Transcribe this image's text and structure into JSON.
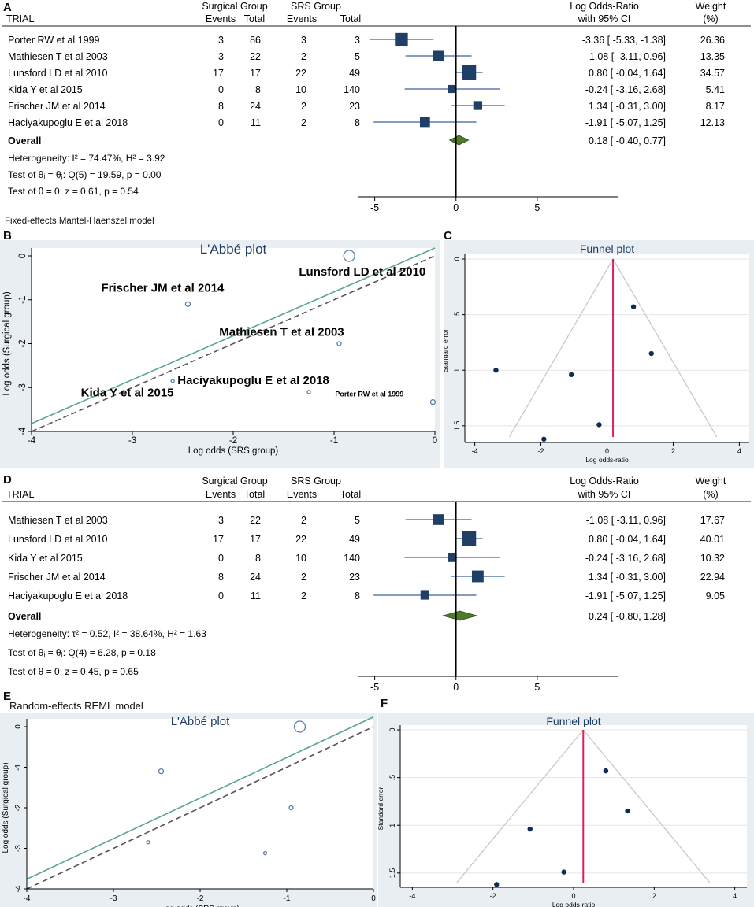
{
  "colors": {
    "marker": "#1f3f66",
    "ci_line": "#5a7fa8",
    "diamond": "#4f7a2a",
    "diamond_edge": "#2d4d12",
    "fit_line": "#5aa592",
    "diag_line": "#555555",
    "funnel_line": "#c8c8c8",
    "null_line": "#e0205a",
    "plot_bg": "#e8eef2",
    "title_blue": "#1f3f66"
  },
  "panel_letters": {
    "a": "A",
    "b": "B",
    "c": "C",
    "d": "D",
    "e": "E",
    "f": "F"
  },
  "chart_data": [
    {
      "id": "A",
      "type": "forest",
      "headers": {
        "trial": "TRIAL",
        "surgical_group": "Surgical Group",
        "srs_group": "SRS Group",
        "events": "Events",
        "total": "Total",
        "lor_top": "Log Odds-Ratio",
        "lor_bottom": "with 95% CI",
        "weight_top": "Weight",
        "weight_bottom": "(%)"
      },
      "studies": [
        {
          "name": "Porter RW et al 1999",
          "s_events": "3",
          "s_total": "86",
          "r_events": "3",
          "r_total": "3",
          "lor": -3.36,
          "lo": -5.33,
          "hi": -1.38,
          "ci_text": "-3.36 [  -5.33,  -1.38]",
          "weight": 26.36,
          "weight_text": "26.36"
        },
        {
          "name": "Mathiesen T et al 2003",
          "s_events": "3",
          "s_total": "22",
          "r_events": "2",
          "r_total": "5",
          "lor": -1.08,
          "lo": -3.11,
          "hi": 0.96,
          "ci_text": "-1.08 [  -3.11,   0.96]",
          "weight": 13.35,
          "weight_text": "13.35"
        },
        {
          "name": "Lunsford LD et al 2010",
          "s_events": "17",
          "s_total": "17",
          "r_events": "22",
          "r_total": "49",
          "lor": 0.8,
          "lo": -0.04,
          "hi": 1.64,
          "ci_text": "0.80 [  -0.04,   1.64]",
          "weight": 34.57,
          "weight_text": "34.57"
        },
        {
          "name": "Kida Y et al  2015",
          "s_events": "0",
          "s_total": "8",
          "r_events": "10",
          "r_total": "140",
          "lor": -0.24,
          "lo": -3.16,
          "hi": 2.68,
          "ci_text": "-0.24 [  -3.16,   2.68]",
          "weight": 5.41,
          "weight_text": "5.41"
        },
        {
          "name": "Frischer JM et al 2014",
          "s_events": "8",
          "s_total": "24",
          "r_events": "2",
          "r_total": "23",
          "lor": 1.34,
          "lo": -0.31,
          "hi": 3.0,
          "ci_text": "1.34 [  -0.31,   3.00]",
          "weight": 8.17,
          "weight_text": "8.17"
        },
        {
          "name": "Haciyakupoglu E et al 2018",
          "s_events": "0",
          "s_total": "11",
          "r_events": "2",
          "r_total": "8",
          "lor": -1.91,
          "lo": -5.07,
          "hi": 1.25,
          "ci_text": "-1.91 [  -5.07,   1.25]",
          "weight": 12.13,
          "weight_text": "12.13"
        }
      ],
      "overall": {
        "label": "Overall",
        "lor": 0.18,
        "lo": -0.4,
        "hi": 0.77,
        "ci_text": "0.18 [  -0.40,   0.77]"
      },
      "stats": [
        "Heterogeneity: I² = 74.47%, H² = 3.92",
        "Test of θᵢ = θⱼ: Q(5) = 19.59, p = 0.00",
        "Test of θ = 0: z = 0.61, p = 0.54"
      ],
      "xlim": [
        -6,
        10
      ],
      "xticks": [
        -5,
        0,
        5
      ],
      "xtick_labels": [
        "-5",
        "0",
        "5"
      ],
      "model_caption": "Fixed-effects Mantel-Haenszel model"
    },
    {
      "id": "B",
      "type": "scatter",
      "title": "L'Abbé plot",
      "xlabel": "Log odds (SRS group)",
      "ylabel": "Log odds (Surgical group)",
      "xlim": [
        -4,
        0
      ],
      "ylim": [
        -4,
        0
      ],
      "xticks": [
        -4,
        -3,
        -2,
        -1,
        0
      ],
      "xtick_labels": [
        "-4",
        "-3",
        "-2",
        "-1",
        "0"
      ],
      "yticks": [
        0,
        -1,
        -2,
        -3,
        -4
      ],
      "ytick_labels": [
        "0",
        "-1",
        "-2",
        "-3",
        "-4"
      ],
      "points": [
        {
          "x": -0.02,
          "y": -3.33,
          "size": 3
        },
        {
          "x": -0.95,
          "y": -2.0,
          "size": 2.5
        },
        {
          "x": -0.85,
          "y": 0.0,
          "size": 7
        },
        {
          "x": -2.6,
          "y": -2.85,
          "size": 2
        },
        {
          "x": -2.45,
          "y": -1.1,
          "size": 3
        },
        {
          "x": -1.25,
          "y": -3.1,
          "size": 2
        }
      ],
      "fit_line": [
        [
          -4,
          -3.82
        ],
        [
          0,
          0.18
        ]
      ],
      "reference_line": [
        [
          -4,
          -4
        ],
        [
          0,
          0
        ]
      ],
      "annotations": [
        {
          "text": "Lunsford LD et al 2010",
          "x": -0.72,
          "y": -0.45,
          "size": "large"
        },
        {
          "text": "Frischer JM et al 2014",
          "x": -2.7,
          "y": -0.82,
          "size": "large"
        },
        {
          "text": "Mathiesen T et al 2003",
          "x": -1.52,
          "y": -1.82,
          "size": "large"
        },
        {
          "text": "Haciyakupoglu E et al 2018",
          "x": -1.8,
          "y": -2.92,
          "size": "large"
        },
        {
          "text": "Kida Y et al 2015",
          "x": -3.05,
          "y": -3.2,
          "size": "large"
        },
        {
          "text": "Porter RW et al 1999",
          "x": -0.65,
          "y": -3.2,
          "size": "small"
        }
      ]
    },
    {
      "id": "C",
      "type": "scatter",
      "title": "Funnel plot",
      "xlabel": "Log odds-ratio",
      "ylabel": "Standard error",
      "xlim": [
        -4.3,
        4.3
      ],
      "ylim": [
        0,
        1.65
      ],
      "xticks": [
        -4,
        -2,
        0,
        2,
        4
      ],
      "xtick_labels": [
        "-4",
        "-2",
        "0",
        "2",
        "4"
      ],
      "yticks": [
        0,
        0.5,
        1,
        1.5
      ],
      "ytick_labels": [
        "0",
        ".5",
        "1",
        "1.5"
      ],
      "points": [
        {
          "x": 0.8,
          "y": 0.43
        },
        {
          "x": 1.34,
          "y": 0.85
        },
        {
          "x": -1.08,
          "y": 1.04
        },
        {
          "x": -3.36,
          "y": 1.0
        },
        {
          "x": -0.24,
          "y": 1.49
        },
        {
          "x": -1.91,
          "y": 1.62
        }
      ],
      "center": 0.18,
      "funnel_se_max": 1.6
    },
    {
      "id": "D",
      "type": "forest",
      "headers": {
        "trial": "TRIAL",
        "surgical_group": "Surgical Group",
        "srs_group": "SRS Group",
        "events": "Events",
        "total": "Total",
        "lor_top": "Log Odds-Ratio",
        "lor_bottom": "with 95% CI",
        "weight_top": "Weight",
        "weight_bottom": "(%)"
      },
      "studies": [
        {
          "name": "Mathiesen T et al 2003",
          "s_events": "3",
          "s_total": "22",
          "r_events": "2",
          "r_total": "5",
          "lor": -1.08,
          "lo": -3.11,
          "hi": 0.96,
          "ci_text": "-1.08 [  -3.11,   0.96]",
          "weight": 17.67,
          "weight_text": "17.67"
        },
        {
          "name": "Lunsford LD et al 2010",
          "s_events": "17",
          "s_total": "17",
          "r_events": "22",
          "r_total": "49",
          "lor": 0.8,
          "lo": -0.04,
          "hi": 1.64,
          "ci_text": "0.80 [  -0.04,   1.64]",
          "weight": 40.01,
          "weight_text": "40.01"
        },
        {
          "name": "Kida Y et al  2015",
          "s_events": "0",
          "s_total": "8",
          "r_events": "10",
          "r_total": "140",
          "lor": -0.24,
          "lo": -3.16,
          "hi": 2.68,
          "ci_text": "-0.24 [  -3.16,   2.68]",
          "weight": 10.32,
          "weight_text": "10.32"
        },
        {
          "name": "Frischer JM et al 2014",
          "s_events": "8",
          "s_total": "24",
          "r_events": "2",
          "r_total": "23",
          "lor": 1.34,
          "lo": -0.31,
          "hi": 3.0,
          "ci_text": "1.34 [  -0.31,   3.00]",
          "weight": 22.94,
          "weight_text": "22.94"
        },
        {
          "name": "Haciyakupoglu E et al 2018",
          "s_events": "0",
          "s_total": "11",
          "r_events": "2",
          "r_total": "8",
          "lor": -1.91,
          "lo": -5.07,
          "hi": 1.25,
          "ci_text": "-1.91 [  -5.07,   1.25]",
          "weight": 9.05,
          "weight_text": "9.05"
        }
      ],
      "overall": {
        "label": "Overall",
        "lor": 0.24,
        "lo": -0.8,
        "hi": 1.28,
        "ci_text": "0.24 [  -0.80,   1.28]"
      },
      "stats": [
        "Heterogeneity: τ² = 0.52, I² = 38.64%, H² = 1.63",
        "Test of θᵢ = θⱼ: Q(4) = 6.28, p = 0.18",
        "Test of θ = 0: z = 0.45, p = 0.65"
      ],
      "xlim": [
        -6,
        10
      ],
      "xticks": [
        -5,
        0,
        5
      ],
      "xtick_labels": [
        "-5",
        "0",
        "5"
      ],
      "model_caption": "Random-effects REML model"
    },
    {
      "id": "E",
      "type": "scatter",
      "title": "L'Abbé plot",
      "xlabel": "Log odds (SRS group)",
      "ylabel": "Log odds (Surgical group)",
      "xlim": [
        -4,
        0
      ],
      "ylim": [
        -4,
        0
      ],
      "xticks": [
        -4,
        -3,
        -2,
        -1,
        0
      ],
      "xtick_labels": [
        "-4",
        "-3",
        "-2",
        "-1",
        "0"
      ],
      "yticks": [
        0,
        -1,
        -2,
        -3,
        -4
      ],
      "ytick_labels": [
        "0",
        "-1",
        "-2",
        "-3",
        "-4"
      ],
      "points": [
        {
          "x": -0.95,
          "y": -2.0,
          "size": 2.5
        },
        {
          "x": -0.85,
          "y": 0.0,
          "size": 7
        },
        {
          "x": -2.6,
          "y": -2.85,
          "size": 2
        },
        {
          "x": -2.45,
          "y": -1.1,
          "size": 3
        },
        {
          "x": -1.25,
          "y": -3.12,
          "size": 2
        }
      ],
      "fit_line": [
        [
          -4,
          -3.76
        ],
        [
          0,
          0.24
        ]
      ],
      "reference_line": [
        [
          -4,
          -4
        ],
        [
          0,
          0
        ]
      ],
      "annotations": []
    },
    {
      "id": "F",
      "type": "scatter",
      "title": "Funnel plot",
      "xlabel": "Log odds-ratio",
      "ylabel": "Standard error",
      "xlim": [
        -4.3,
        4.3
      ],
      "ylim": [
        0,
        1.65
      ],
      "xticks": [
        -4,
        -2,
        0,
        2,
        4
      ],
      "xtick_labels": [
        "-4",
        "-2",
        "0",
        "2",
        "4"
      ],
      "yticks": [
        0,
        0.5,
        1,
        1.5
      ],
      "ytick_labels": [
        "0",
        ".5",
        "1",
        "1.5"
      ],
      "points": [
        {
          "x": 0.8,
          "y": 0.43
        },
        {
          "x": 1.34,
          "y": 0.85
        },
        {
          "x": -1.08,
          "y": 1.04
        },
        {
          "x": -0.24,
          "y": 1.49
        },
        {
          "x": -1.91,
          "y": 1.62
        }
      ],
      "center": 0.24,
      "funnel_se_max": 1.6
    }
  ]
}
